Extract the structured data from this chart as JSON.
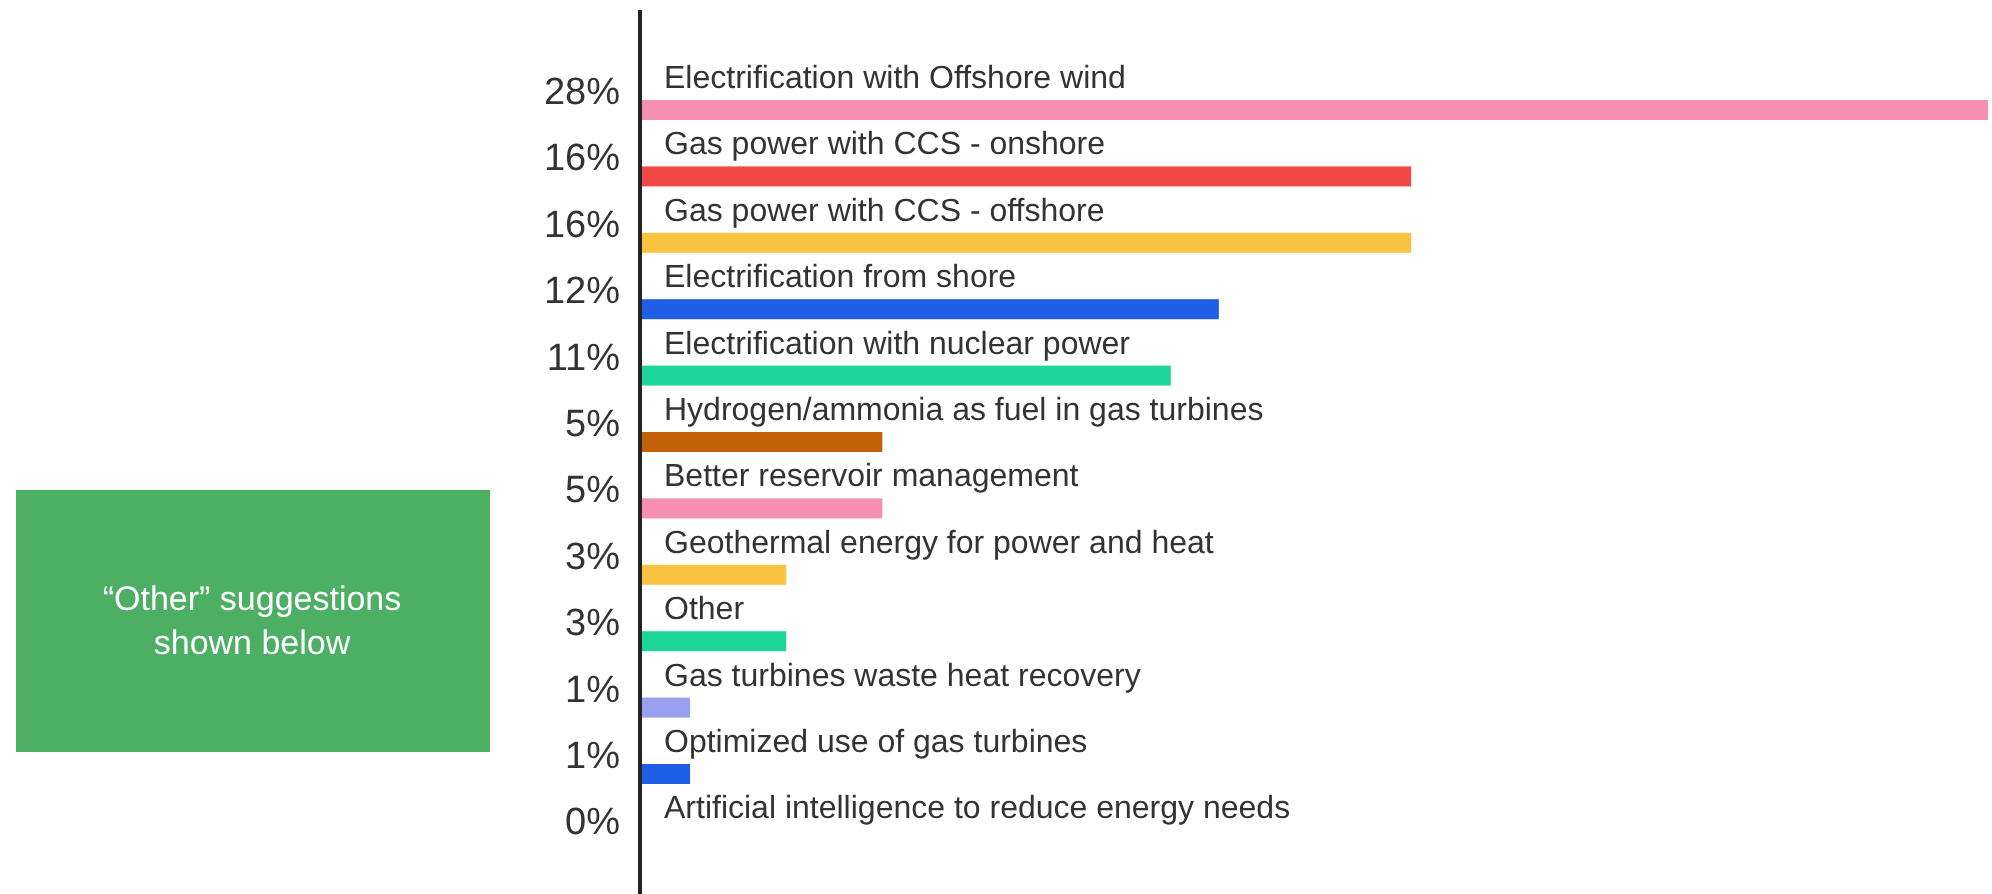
{
  "chart_data": {
    "type": "bar",
    "orientation": "horizontal",
    "categories": [
      "Electrification with Offshore wind",
      "Gas power with CCS - onshore",
      "Gas power with CCS - offshore",
      "Electrification from shore",
      "Electrification with nuclear power",
      "Hydrogen/ammonia as fuel in gas turbines",
      "Better reservoir management",
      "Geothermal energy for power and heat",
      "Other",
      "Gas turbines waste heat recovery",
      "Optimized use of gas turbines",
      "Artificial intelligence to reduce energy needs"
    ],
    "values": [
      28,
      16,
      16,
      12,
      11,
      5,
      5,
      3,
      3,
      1,
      1,
      0
    ],
    "value_labels": [
      "28%",
      "16%",
      "16%",
      "12%",
      "11%",
      "5%",
      "5%",
      "3%",
      "3%",
      "1%",
      "1%",
      "0%"
    ],
    "colors": [
      "#f78fb0",
      "#f24848",
      "#fbc440",
      "#1f5fe8",
      "#1fd69a",
      "#c4620a",
      "#f78fb0",
      "#fbc440",
      "#1fd69a",
      "#9aa0f0",
      "#1f5fe8",
      "#e04040"
    ],
    "annotations": [
      "“Other” suggestions shown below"
    ]
  }
}
